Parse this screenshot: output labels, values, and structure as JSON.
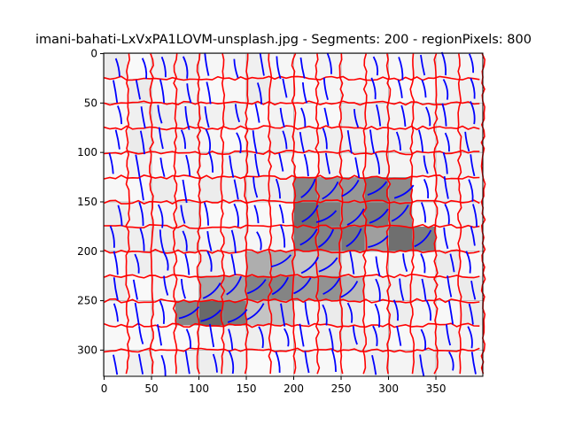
{
  "chart_data": {
    "type": "heatmap",
    "title": "imani-bahati-LxVxPA1LOVM-unsplash.jpg - Segments: 200 - regionPixels: 800",
    "xlabel": "",
    "ylabel": "",
    "xlim": [
      -0.5,
      399.5
    ],
    "ylim": [
      326.5,
      -0.5
    ],
    "x_ticks": [
      0,
      50,
      100,
      150,
      200,
      250,
      300,
      350
    ],
    "y_ticks": [
      0,
      50,
      100,
      150,
      200,
      250,
      300
    ],
    "grid": true,
    "image": {
      "width": 400,
      "height": 327,
      "colormap": "gray",
      "background_level": 0.96
    },
    "segment_grid": {
      "cell_size": 25,
      "columns": [
        0,
        25,
        50,
        75,
        100,
        125,
        150,
        175,
        200,
        225,
        250,
        275,
        300,
        325,
        350,
        375,
        400
      ],
      "rows": [
        0,
        25,
        50,
        75,
        100,
        125,
        150,
        175,
        200,
        225,
        250,
        275,
        300,
        327
      ]
    },
    "dark_regions": [
      {
        "cx": 222,
        "cy": 165,
        "rx": 28,
        "ry": 50,
        "level": 0.4
      },
      {
        "cx": 290,
        "cy": 150,
        "rx": 45,
        "ry": 25,
        "level": 0.4
      },
      {
        "cx": 320,
        "cy": 185,
        "rx": 35,
        "ry": 25,
        "level": 0.42
      },
      {
        "cx": 255,
        "cy": 180,
        "rx": 45,
        "ry": 30,
        "level": 0.45
      },
      {
        "cx": 175,
        "cy": 235,
        "rx": 55,
        "ry": 30,
        "level": 0.5
      },
      {
        "cx": 115,
        "cy": 258,
        "rx": 45,
        "ry": 22,
        "level": 0.4
      },
      {
        "cx": 230,
        "cy": 232,
        "rx": 45,
        "ry": 25,
        "level": 0.55
      }
    ],
    "colors": {
      "segment_boundary": "#ff0000",
      "gradient_lines": "#0000ff",
      "grid": "#b0b0b0",
      "background": "#f5f5f5"
    }
  }
}
